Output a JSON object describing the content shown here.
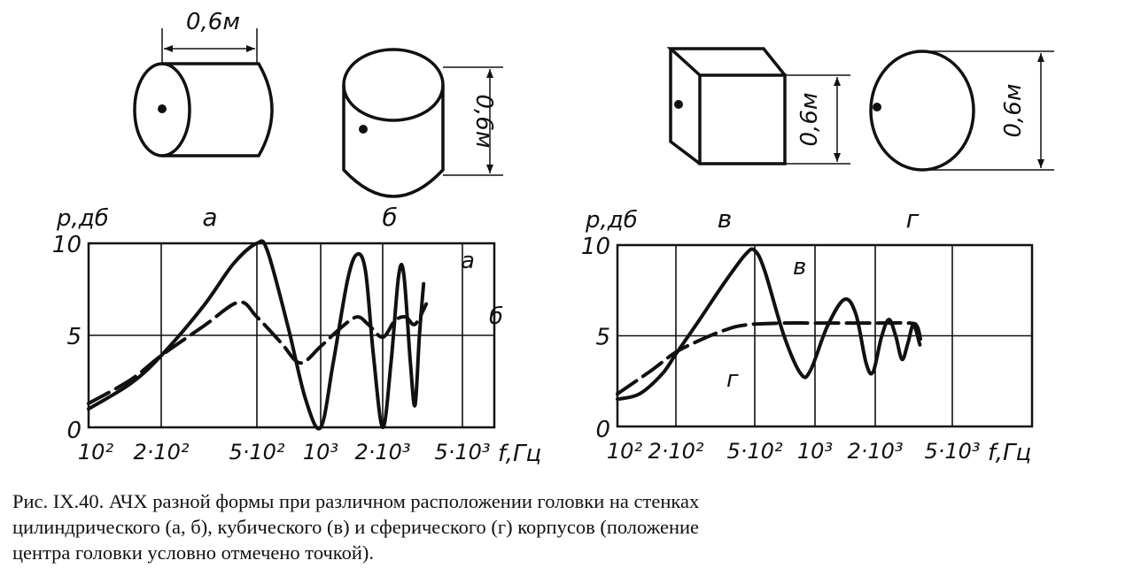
{
  "figure": {
    "drawings": [
      {
        "id": "a",
        "shape": "horizontal-cylinder",
        "dimension": "0,6м"
      },
      {
        "id": "b",
        "shape": "vertical-cylinder",
        "dimension": "0,6м"
      },
      {
        "id": "v",
        "shape": "cube",
        "dimension": "0,6м"
      },
      {
        "id": "g",
        "shape": "sphere",
        "dimension": "0,6м"
      }
    ],
    "caption": {
      "line1": "Рис. IX.40. АЧХ разной формы при различном расположении головки на стенках",
      "line2": "цилиндрического (а, б), кубического (в) и сферического (г) корпусов (положение",
      "line3": "центра головки условно отмечено точкой)."
    }
  },
  "chart_data": [
    {
      "type": "line",
      "ylabel": "p,дб",
      "xlabel": "f,Гц",
      "panel_labels": [
        "а",
        "б"
      ],
      "x_scale": "log",
      "x_ticks": [
        "10²",
        "2·10²",
        "5·10²",
        "10³",
        "2·10³",
        "5·10³"
      ],
      "x_tick_values": [
        100,
        200,
        500,
        1000,
        2000,
        5000
      ],
      "y_ticks": [
        "0",
        "5",
        "10"
      ],
      "y_tick_values": [
        0,
        5,
        10
      ],
      "ylim": [
        0,
        10
      ],
      "grid": true,
      "series": [
        {
          "name": "а",
          "style": "solid",
          "x": [
            100,
            150,
            200,
            300,
            400,
            500,
            560,
            700,
            850,
            1000,
            1150,
            1350,
            1500,
            1650,
            1800,
            2000,
            2200,
            2400,
            2550,
            2750,
            2900,
            3050,
            3200
          ],
          "y": [
            1.0,
            2.4,
            3.9,
            6.6,
            8.9,
            10.0,
            9.6,
            5.5,
            1.5,
            0.0,
            3.5,
            8.0,
            9.4,
            8.5,
            4.0,
            0.0,
            3.5,
            8.2,
            8.3,
            3.5,
            1.2,
            5.0,
            7.8
          ]
        },
        {
          "name": "б",
          "style": "dashed",
          "x": [
            100,
            150,
            200,
            300,
            420,
            500,
            650,
            800,
            1000,
            1250,
            1500,
            1700,
            2000,
            2300,
            2600,
            2900,
            3300
          ],
          "y": [
            1.3,
            2.6,
            3.9,
            5.5,
            6.8,
            6.0,
            4.6,
            3.5,
            4.4,
            5.4,
            6.0,
            5.6,
            4.9,
            5.8,
            6.0,
            5.6,
            6.7
          ]
        }
      ]
    },
    {
      "type": "line",
      "ylabel": "p,дб",
      "xlabel": "f,Гц",
      "panel_labels": [
        "в",
        "г"
      ],
      "x_scale": "log",
      "x_ticks": [
        "10²",
        "2·10²",
        "5·10²",
        "10³",
        "2·10³",
        "5·10³"
      ],
      "x_tick_values": [
        100,
        200,
        500,
        1000,
        2000,
        5000
      ],
      "y_ticks": [
        "0",
        "5",
        "10"
      ],
      "y_tick_values": [
        0,
        5,
        10
      ],
      "ylim": [
        0,
        10
      ],
      "grid": true,
      "series": [
        {
          "name": "в",
          "style": "solid",
          "x": [
            100,
            130,
            170,
            200,
            260,
            350,
            450,
            500,
            560,
            700,
            850,
            950,
            1150,
            1400,
            1600,
            1800,
            1950,
            2150,
            2350,
            2550,
            2750,
            2950,
            3150,
            3400
          ],
          "y": [
            1.5,
            1.8,
            2.9,
            4.0,
            5.8,
            7.9,
            9.5,
            9.7,
            8.6,
            5.0,
            2.9,
            3.1,
            5.5,
            7.0,
            6.2,
            3.5,
            3.0,
            4.9,
            5.9,
            5.0,
            3.7,
            4.6,
            5.6,
            4.5
          ]
        },
        {
          "name": "г",
          "style": "dashed",
          "x": [
            100,
            150,
            200,
            270,
            350,
            450,
            700,
            1000,
            2000,
            3000,
            3300,
            3450
          ],
          "y": [
            1.8,
            3.1,
            4.1,
            4.8,
            5.3,
            5.6,
            5.7,
            5.7,
            5.7,
            5.7,
            5.5,
            4.6
          ]
        }
      ]
    }
  ]
}
